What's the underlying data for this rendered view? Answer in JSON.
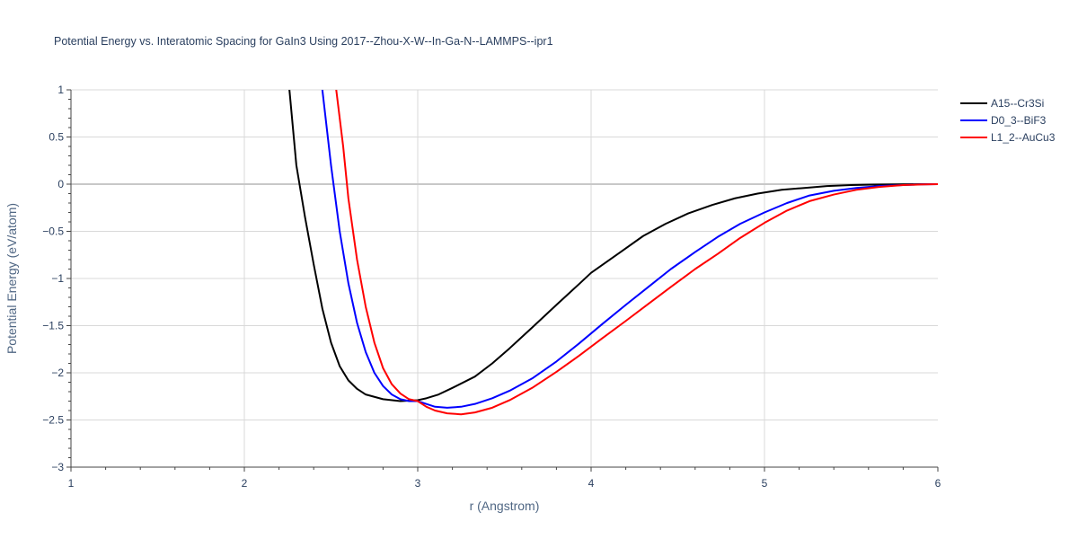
{
  "chart_data": {
    "type": "line",
    "title": "Potential Energy vs. Interatomic Spacing for GaIn3 Using 2017--Zhou-X-W--In-Ga-N--LAMMPS--ipr1",
    "xlabel": "r (Angstrom)",
    "ylabel": "Potential Energy (eV/atom)",
    "xlim": [
      1,
      6
    ],
    "ylim": [
      -3,
      1
    ],
    "x_ticks": [
      1,
      2,
      3,
      4,
      5,
      6
    ],
    "x_tick_labels": [
      "1",
      "2",
      "3",
      "4",
      "5",
      "6"
    ],
    "y_ticks": [
      -3,
      -2.5,
      -2,
      -1.5,
      -1,
      -0.5,
      0,
      0.5,
      1
    ],
    "y_tick_labels": [
      "−3",
      "−2.5",
      "−2",
      "−1.5",
      "−1",
      "−0.5",
      "0",
      "0.5",
      "1"
    ],
    "grid": true,
    "legend_position": "top-right",
    "series": [
      {
        "name": "A15--Cr3Si",
        "color": "#000000",
        "x": [
          2.26,
          2.3,
          2.35,
          2.4,
          2.45,
          2.5,
          2.55,
          2.6,
          2.65,
          2.7,
          2.8,
          2.9,
          3.0,
          3.05,
          3.12,
          3.2,
          3.33,
          3.43,
          3.53,
          3.66,
          3.8,
          3.93,
          4.0,
          4.17,
          4.3,
          4.43,
          4.56,
          4.7,
          4.83,
          4.96,
          5.1,
          5.23,
          5.36,
          5.5,
          5.63,
          5.76,
          5.9,
          6.0
        ],
        "y": [
          1.0,
          0.2,
          -0.35,
          -0.85,
          -1.32,
          -1.68,
          -1.93,
          -2.08,
          -2.17,
          -2.23,
          -2.28,
          -2.3,
          -2.29,
          -2.27,
          -2.23,
          -2.16,
          -2.04,
          -1.9,
          -1.74,
          -1.52,
          -1.28,
          -1.06,
          -0.94,
          -0.72,
          -0.55,
          -0.42,
          -0.31,
          -0.22,
          -0.15,
          -0.1,
          -0.06,
          -0.04,
          -0.02,
          -0.01,
          -0.005,
          -0.002,
          0.0,
          0.0
        ],
        "values": [
          1.0,
          0.2,
          -0.35,
          -0.85,
          -1.32,
          -1.68,
          -1.93,
          -2.08,
          -2.17,
          -2.23,
          -2.28,
          -2.3,
          -2.29,
          -2.27,
          -2.23,
          -2.16,
          -2.04,
          -1.9,
          -1.74,
          -1.52,
          -1.28,
          -1.06,
          -0.94,
          -0.72,
          -0.55,
          -0.42,
          -0.31,
          -0.22,
          -0.15,
          -0.1,
          -0.06,
          -0.04,
          -0.02,
          -0.01,
          -0.005,
          -0.002,
          0.0,
          0.0
        ]
      },
      {
        "name": "D0_3--BiF3",
        "color": "#0000ff",
        "x": [
          2.45,
          2.5,
          2.55,
          2.6,
          2.65,
          2.7,
          2.75,
          2.8,
          2.85,
          2.9,
          2.95,
          3.0,
          3.05,
          3.1,
          3.17,
          3.25,
          3.33,
          3.43,
          3.53,
          3.66,
          3.8,
          3.93,
          4.06,
          4.2,
          4.33,
          4.46,
          4.6,
          4.73,
          4.86,
          5.0,
          5.13,
          5.26,
          5.4,
          5.53,
          5.66,
          5.8,
          5.9,
          6.0
        ],
        "y": [
          1.0,
          0.2,
          -0.5,
          -1.05,
          -1.47,
          -1.78,
          -2.0,
          -2.14,
          -2.23,
          -2.28,
          -2.3,
          -2.3,
          -2.33,
          -2.36,
          -2.37,
          -2.36,
          -2.33,
          -2.27,
          -2.19,
          -2.06,
          -1.88,
          -1.69,
          -1.49,
          -1.28,
          -1.09,
          -0.9,
          -0.72,
          -0.56,
          -0.42,
          -0.3,
          -0.2,
          -0.12,
          -0.07,
          -0.04,
          -0.02,
          -0.01,
          -0.003,
          0.0
        ],
        "values": [
          1.0,
          0.2,
          -0.5,
          -1.05,
          -1.47,
          -1.78,
          -2.0,
          -2.14,
          -2.23,
          -2.28,
          -2.3,
          -2.3,
          -2.33,
          -2.36,
          -2.37,
          -2.36,
          -2.33,
          -2.27,
          -2.19,
          -2.06,
          -1.88,
          -1.69,
          -1.49,
          -1.28,
          -1.09,
          -0.9,
          -0.72,
          -0.56,
          -0.42,
          -0.3,
          -0.2,
          -0.12,
          -0.07,
          -0.04,
          -0.02,
          -0.01,
          -0.003,
          0.0
        ]
      },
      {
        "name": "L1_2--AuCu3",
        "color": "#ff0000",
        "x": [
          2.53,
          2.57,
          2.6,
          2.65,
          2.7,
          2.75,
          2.8,
          2.85,
          2.9,
          2.95,
          3.0,
          3.05,
          3.1,
          3.17,
          3.25,
          3.33,
          3.43,
          3.53,
          3.66,
          3.8,
          3.93,
          4.06,
          4.2,
          4.33,
          4.46,
          4.6,
          4.73,
          4.86,
          5.0,
          5.13,
          5.26,
          5.4,
          5.53,
          5.66,
          5.8,
          5.9,
          6.0
        ],
        "y": [
          1.0,
          0.4,
          -0.15,
          -0.8,
          -1.3,
          -1.68,
          -1.95,
          -2.12,
          -2.22,
          -2.28,
          -2.3,
          -2.36,
          -2.4,
          -2.43,
          -2.44,
          -2.42,
          -2.37,
          -2.29,
          -2.16,
          -1.99,
          -1.82,
          -1.64,
          -1.45,
          -1.27,
          -1.09,
          -0.9,
          -0.74,
          -0.57,
          -0.41,
          -0.28,
          -0.18,
          -0.11,
          -0.06,
          -0.03,
          -0.01,
          -0.004,
          0.0
        ],
        "values": [
          1.0,
          0.4,
          -0.15,
          -0.8,
          -1.3,
          -1.68,
          -1.95,
          -2.12,
          -2.22,
          -2.28,
          -2.3,
          -2.36,
          -2.4,
          -2.43,
          -2.44,
          -2.42,
          -2.37,
          -2.29,
          -2.16,
          -1.99,
          -1.82,
          -1.64,
          -1.45,
          -1.27,
          -1.09,
          -0.9,
          -0.74,
          -0.57,
          -0.41,
          -0.28,
          -0.18,
          -0.11,
          -0.06,
          -0.03,
          -0.01,
          -0.004,
          0.0
        ]
      }
    ]
  }
}
